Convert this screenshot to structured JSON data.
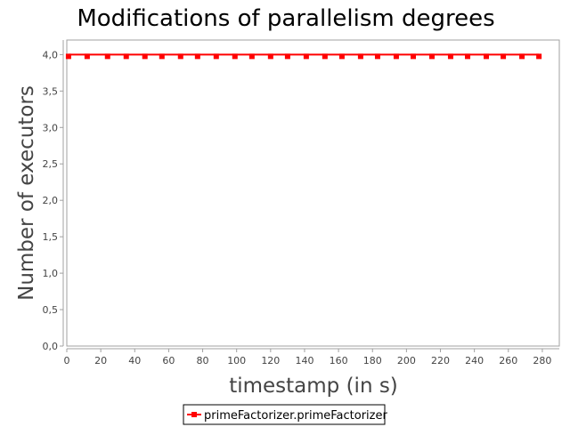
{
  "chart_data": {
    "type": "line",
    "title": "Modifications of parallelism degrees",
    "xlabel": "timestamp (in s)",
    "ylabel": "Number of executors",
    "xlim": [
      0,
      290
    ],
    "ylim": [
      0,
      4.2
    ],
    "x_ticks": [
      0,
      20,
      40,
      60,
      80,
      100,
      120,
      140,
      160,
      180,
      200,
      220,
      240,
      260,
      280
    ],
    "y_ticks": [
      0,
      0.5,
      1,
      1.5,
      2,
      2.5,
      3,
      3.5,
      4
    ],
    "y_tick_labels": [
      "0,0",
      "0,5",
      "1,0",
      "1,5",
      "2,0",
      "2,5",
      "3,0",
      "3,5",
      "4,0"
    ],
    "grid": false,
    "legend_position": "bottom-center",
    "series": [
      {
        "name": "primeFactorizer.primeFactorizer",
        "color": "#ff0000",
        "marker": "square",
        "x": [
          1,
          12,
          24,
          35,
          46,
          56,
          67,
          77,
          88,
          99,
          109,
          120,
          130,
          141,
          152,
          162,
          173,
          183,
          194,
          204,
          215,
          226,
          236,
          247,
          257,
          268,
          278
        ],
        "values": [
          4,
          4,
          4,
          4,
          4,
          4,
          4,
          4,
          4,
          4,
          4,
          4,
          4,
          4,
          4,
          4,
          4,
          4,
          4,
          4,
          4,
          4,
          4,
          4,
          4,
          4,
          4
        ]
      }
    ]
  }
}
